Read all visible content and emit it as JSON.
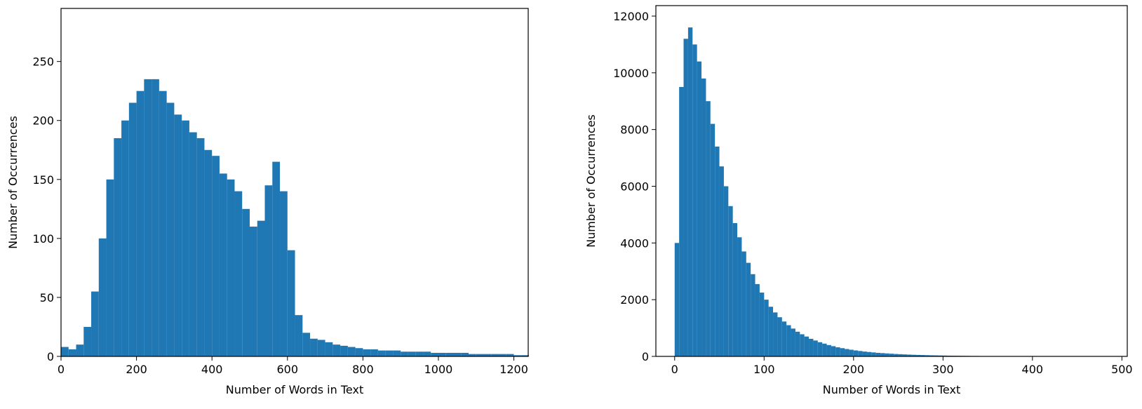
{
  "chart_data": [
    {
      "type": "histogram",
      "xlabel": "Number of Words in Text",
      "ylabel": "Number of Occurrences",
      "color": "#1f77b4",
      "bins": [
        0,
        20,
        40,
        60,
        80,
        100,
        120,
        140,
        160,
        180,
        200,
        220,
        240,
        260,
        280,
        300,
        320,
        340,
        360,
        380,
        400,
        420,
        440,
        460,
        480,
        500,
        520,
        540,
        560,
        580,
        600,
        620,
        640,
        660,
        680,
        700,
        720,
        740,
        760,
        780,
        800,
        820,
        840,
        860,
        880,
        900,
        920,
        940,
        960,
        980,
        1000,
        1020,
        1040,
        1060,
        1080,
        1100,
        1120,
        1140,
        1160,
        1180,
        1200,
        1220,
        1240
      ],
      "values": [
        8,
        6,
        10,
        25,
        55,
        100,
        150,
        185,
        200,
        215,
        225,
        235,
        235,
        225,
        215,
        205,
        200,
        190,
        185,
        175,
        170,
        155,
        150,
        140,
        125,
        110,
        115,
        145,
        165,
        140,
        90,
        35,
        20,
        15,
        14,
        12,
        10,
        9,
        8,
        7,
        6,
        6,
        5,
        5,
        5,
        4,
        4,
        4,
        4,
        3,
        3,
        3,
        3,
        3,
        2,
        2,
        2,
        2,
        2,
        2,
        1,
        1
      ],
      "xlim": [
        0,
        1238
      ],
      "ylim": [
        0,
        295
      ],
      "xticks": [
        0,
        200,
        400,
        600,
        800,
        1000,
        1200
      ],
      "yticks": [
        0,
        50,
        100,
        150,
        200,
        250
      ]
    },
    {
      "type": "histogram",
      "xlabel": "Number of Words in Text",
      "ylabel": "Number of Occurrences",
      "color": "#1f77b4",
      "bins": [
        0,
        5,
        10,
        15,
        20,
        25,
        30,
        35,
        40,
        45,
        50,
        55,
        60,
        65,
        70,
        75,
        80,
        85,
        90,
        95,
        100,
        105,
        110,
        115,
        120,
        125,
        130,
        135,
        140,
        145,
        150,
        155,
        160,
        165,
        170,
        175,
        180,
        185,
        190,
        195,
        200,
        205,
        210,
        215,
        220,
        225,
        230,
        235,
        240,
        245,
        250,
        255,
        260,
        265,
        270,
        275,
        280,
        285,
        290,
        295,
        300,
        305,
        310,
        315,
        320,
        325,
        330,
        335,
        340,
        345,
        350,
        355,
        360,
        365,
        370,
        375,
        380,
        385,
        390,
        395,
        400,
        405,
        410,
        415,
        420
      ],
      "values": [
        4000,
        9500,
        11200,
        11600,
        11000,
        10400,
        9800,
        9000,
        8200,
        7400,
        6700,
        6000,
        5300,
        4700,
        4200,
        3700,
        3300,
        2900,
        2550,
        2250,
        2000,
        1750,
        1550,
        1380,
        1230,
        1100,
        980,
        870,
        780,
        700,
        620,
        560,
        500,
        450,
        400,
        360,
        320,
        290,
        260,
        235,
        210,
        190,
        170,
        155,
        140,
        125,
        115,
        105,
        95,
        85,
        78,
        70,
        63,
        57,
        52,
        47,
        42,
        38,
        35,
        32,
        29,
        26,
        24,
        22,
        20,
        18,
        16,
        15,
        13,
        12,
        11,
        10,
        9,
        8,
        7,
        6,
        6,
        5,
        5,
        4,
        4,
        3,
        3,
        2
      ],
      "xlim": [
        -21,
        506
      ],
      "ylim": [
        0,
        12370
      ],
      "xticks": [
        0,
        100,
        200,
        300,
        400,
        500
      ],
      "yticks": [
        0,
        2000,
        4000,
        6000,
        8000,
        10000,
        12000
      ]
    }
  ]
}
